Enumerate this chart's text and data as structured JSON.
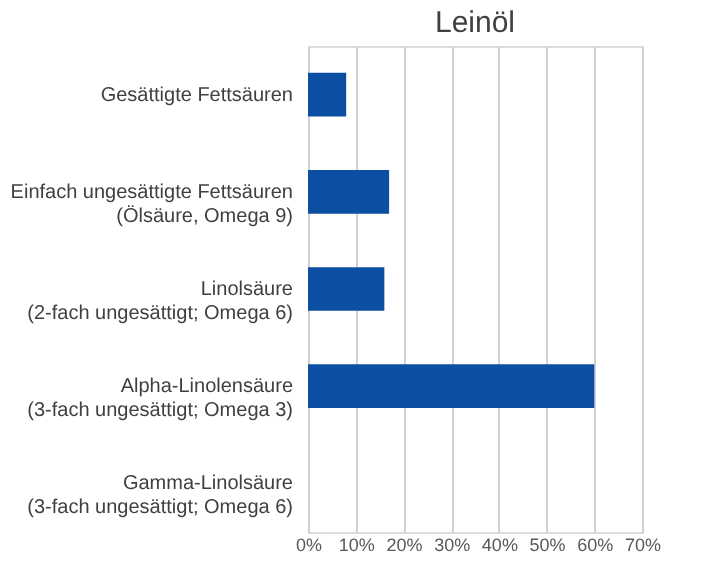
{
  "chart_data": {
    "type": "bar",
    "orientation": "horizontal",
    "title": "Leinöl",
    "categories": [
      "Gesättigte Fettsäuren",
      "Einfach ungesättigte Fettsäuren\n(Ölsäure, Omega 9)",
      "Linolsäure\n(2-fach ungesättigt; Omega 6)",
      "Alpha-Linolensäure\n(3-fach ungesättigt; Omega 3)",
      "Gamma-Linolsäure\n(3-fach ungesättigt; Omega 6)"
    ],
    "values": [
      8,
      17,
      16,
      60,
      0
    ],
    "color": "#0b4ea2",
    "xlim": [
      0,
      70
    ],
    "xticks": [
      {
        "value": 0,
        "label": "0%"
      },
      {
        "value": 10,
        "label": "10%"
      },
      {
        "value": 20,
        "label": "20%"
      },
      {
        "value": 30,
        "label": "30%"
      },
      {
        "value": 40,
        "label": "40%"
      },
      {
        "value": 50,
        "label": "50%"
      },
      {
        "value": 60,
        "label": "60%"
      },
      {
        "value": 70,
        "label": "70%"
      }
    ],
    "grid": "x"
  }
}
